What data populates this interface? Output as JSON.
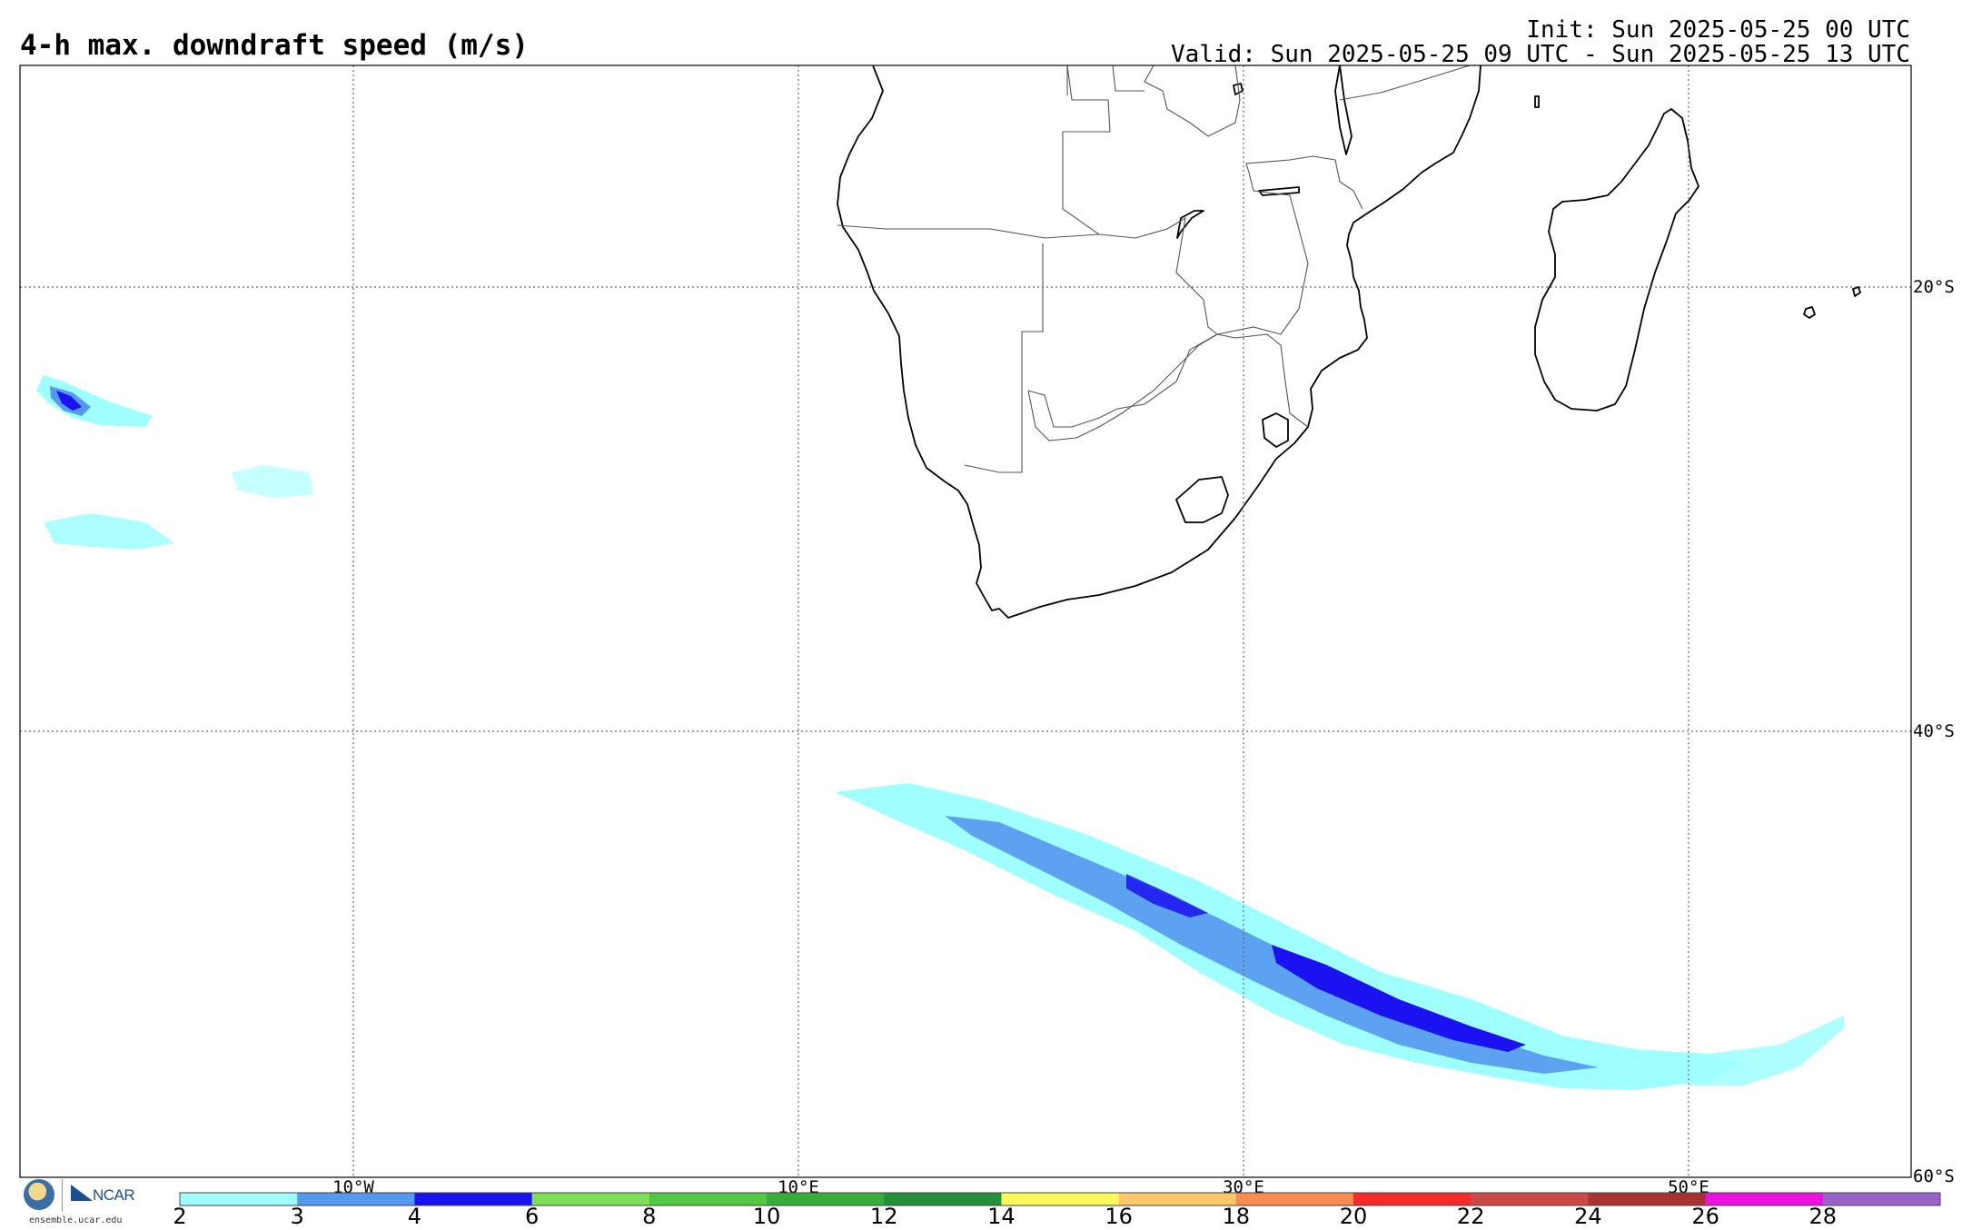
{
  "header": {
    "title": "4-h max. downdraft speed (m/s)",
    "init": "Init: Sun 2025-05-25 00 UTC",
    "valid": "Valid: Sun 2025-05-25 09 UTC - Sun 2025-05-25 13 UTC"
  },
  "grid": {
    "lat_labels": [
      "20°S",
      "40°S",
      "60°S"
    ],
    "lon_labels": [
      "10°W",
      "10°E",
      "30°E",
      "50°E"
    ]
  },
  "colorbar": {
    "ticks": [
      "2",
      "3",
      "4",
      "6",
      "8",
      "10",
      "12",
      "14",
      "16",
      "18",
      "20",
      "22",
      "24",
      "26",
      "28"
    ],
    "colors": [
      "#9ffffe",
      "#5598f0",
      "#1a12f0",
      "#7de056",
      "#50c842",
      "#36ae3a",
      "#22913a",
      "#fafa5a",
      "#fcc868",
      "#fa8c50",
      "#f52a2a",
      "#cd4848",
      "#a83232",
      "#ee10e0",
      "#9862c8"
    ]
  },
  "colors": {
    "light_cyan": "#9ffffe",
    "mid_blue": "#5598f0",
    "dark_blue": "#1a12f0",
    "coastline": "#000000",
    "borders": "#555555"
  },
  "footer": {
    "logo_nsf": "NSF",
    "logo_ncar": "NCAR",
    "site": "ensemble.ucar.edu"
  }
}
